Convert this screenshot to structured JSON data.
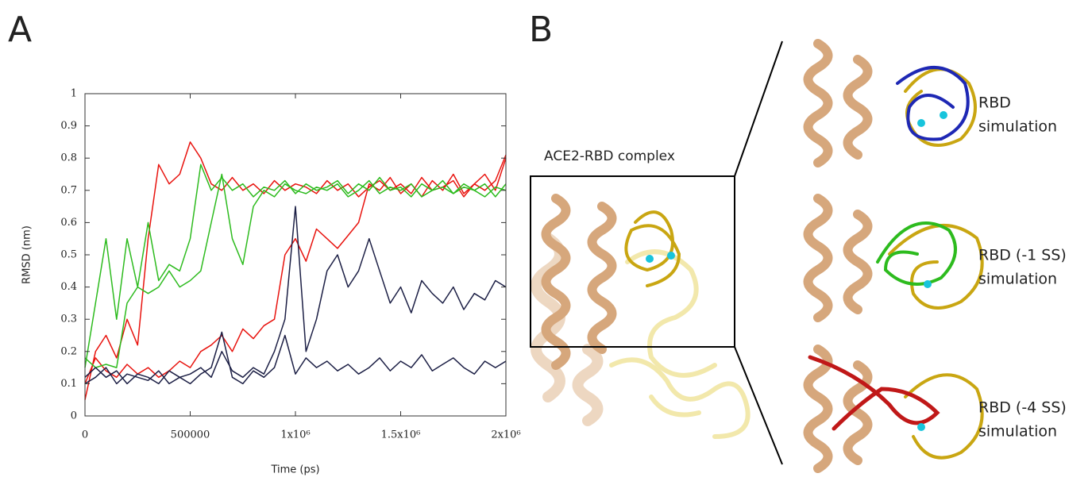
{
  "figure": {
    "panel_a": "A",
    "panel_b": "B",
    "complex_label": "ACE2-RBD complex",
    "structures": [
      [
        "RBD",
        "simulation"
      ],
      [
        "RBD (-1 SS)",
        "simulation"
      ],
      [
        "RBD (-4 SS)",
        "simulation"
      ]
    ]
  },
  "chart_data": {
    "type": "line",
    "xlabel": "Time (ps)",
    "ylabel": "RMSD (nm)",
    "x": [
      0,
      50000,
      100000,
      150000,
      200000,
      250000,
      300000,
      350000,
      400000,
      450000,
      500000,
      550000,
      600000,
      650000,
      700000,
      750000,
      800000,
      850000,
      900000,
      950000,
      1000000,
      1050000,
      1100000,
      1150000,
      1200000,
      1250000,
      1300000,
      1350000,
      1400000,
      1450000,
      1500000,
      1550000,
      1600000,
      1650000,
      1700000,
      1750000,
      1800000,
      1850000,
      1900000,
      1950000,
      2000000
    ],
    "series": [
      {
        "color": "#e8130e",
        "values": [
          0.05,
          0.2,
          0.25,
          0.18,
          0.3,
          0.22,
          0.55,
          0.78,
          0.72,
          0.75,
          0.85,
          0.8,
          0.72,
          0.7,
          0.74,
          0.7,
          0.72,
          0.69,
          0.73,
          0.7,
          0.72,
          0.71,
          0.69,
          0.73,
          0.7,
          0.72,
          0.68,
          0.71,
          0.73,
          0.7,
          0.72,
          0.69,
          0.74,
          0.7,
          0.71,
          0.73,
          0.68,
          0.72,
          0.75,
          0.7,
          0.8
        ]
      },
      {
        "color": "#e8130e",
        "values": [
          0.1,
          0.18,
          0.14,
          0.12,
          0.16,
          0.13,
          0.15,
          0.12,
          0.14,
          0.17,
          0.15,
          0.2,
          0.22,
          0.25,
          0.2,
          0.27,
          0.24,
          0.28,
          0.3,
          0.5,
          0.55,
          0.48,
          0.58,
          0.55,
          0.52,
          0.56,
          0.6,
          0.72,
          0.7,
          0.74,
          0.69,
          0.72,
          0.68,
          0.73,
          0.7,
          0.75,
          0.69,
          0.72,
          0.7,
          0.73,
          0.81
        ]
      },
      {
        "color": "#2dbb1e",
        "values": [
          0.15,
          0.35,
          0.55,
          0.3,
          0.55,
          0.4,
          0.6,
          0.42,
          0.47,
          0.45,
          0.55,
          0.78,
          0.7,
          0.74,
          0.7,
          0.72,
          0.68,
          0.71,
          0.7,
          0.73,
          0.69,
          0.72,
          0.7,
          0.71,
          0.73,
          0.69,
          0.72,
          0.7,
          0.74,
          0.7,
          0.71,
          0.68,
          0.72,
          0.7,
          0.73,
          0.69,
          0.71,
          0.7,
          0.72,
          0.68,
          0.72
        ]
      },
      {
        "color": "#2dbb1e",
        "values": [
          0.18,
          0.15,
          0.16,
          0.15,
          0.35,
          0.4,
          0.38,
          0.4,
          0.45,
          0.4,
          0.42,
          0.45,
          0.6,
          0.75,
          0.55,
          0.47,
          0.65,
          0.7,
          0.68,
          0.72,
          0.7,
          0.69,
          0.71,
          0.7,
          0.72,
          0.68,
          0.7,
          0.73,
          0.69,
          0.71,
          0.7,
          0.72,
          0.68,
          0.7,
          0.71,
          0.69,
          0.72,
          0.7,
          0.68,
          0.71,
          0.7
        ]
      },
      {
        "color": "#1c1f45",
        "values": [
          0.12,
          0.15,
          0.12,
          0.14,
          0.1,
          0.13,
          0.12,
          0.1,
          0.14,
          0.12,
          0.13,
          0.15,
          0.12,
          0.2,
          0.14,
          0.12,
          0.15,
          0.13,
          0.2,
          0.3,
          0.65,
          0.2,
          0.3,
          0.45,
          0.5,
          0.4,
          0.45,
          0.55,
          0.45,
          0.35,
          0.4,
          0.32,
          0.42,
          0.38,
          0.35,
          0.4,
          0.33,
          0.38,
          0.36,
          0.42,
          0.4
        ]
      },
      {
        "color": "#1c1f45",
        "values": [
          0.1,
          0.12,
          0.15,
          0.1,
          0.13,
          0.12,
          0.11,
          0.14,
          0.1,
          0.12,
          0.1,
          0.13,
          0.15,
          0.26,
          0.12,
          0.1,
          0.14,
          0.12,
          0.15,
          0.25,
          0.13,
          0.18,
          0.15,
          0.17,
          0.14,
          0.16,
          0.13,
          0.15,
          0.18,
          0.14,
          0.17,
          0.15,
          0.19,
          0.14,
          0.16,
          0.18,
          0.15,
          0.13,
          0.17,
          0.15,
          0.17
        ]
      }
    ],
    "xlim": [
      0,
      2000000
    ],
    "xticks": [
      0,
      500000,
      {
        "value": 1000000,
        "label": "1x10⁶"
      },
      {
        "value": 1500000,
        "label": "1.5x10⁶"
      },
      {
        "value": 2000000,
        "label": "2x10⁶"
      }
    ],
    "ylim": [
      0,
      1
    ],
    "yticks": [
      0,
      0.1,
      0.2,
      0.3,
      0.4,
      0.5,
      0.6,
      0.7,
      0.8,
      0.9,
      1
    ]
  }
}
